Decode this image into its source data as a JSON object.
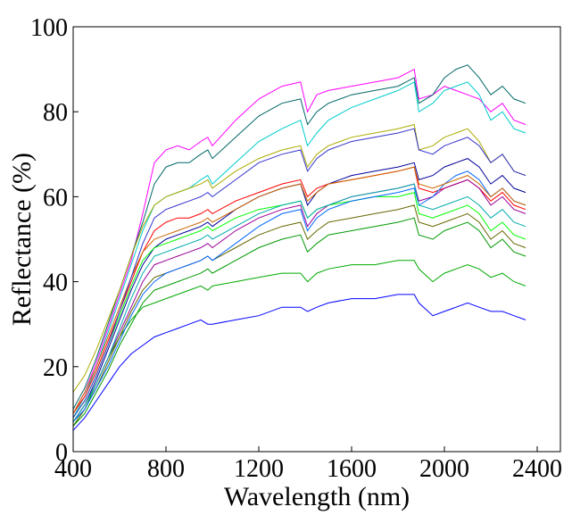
{
  "chart_data": {
    "type": "line",
    "title": "",
    "xlabel": "Wavelength (nm)",
    "ylabel": "Reflectance (%)",
    "xlim": [
      400,
      2500
    ],
    "ylim": [
      0,
      100
    ],
    "x_ticks": [
      400,
      800,
      1200,
      1600,
      2000,
      2400
    ],
    "y_ticks": [
      0,
      20,
      40,
      60,
      80,
      100
    ],
    "x_tick_labels": [
      "400",
      "800",
      "1200",
      "1600",
      "2000",
      "2400"
    ],
    "y_tick_labels": [
      "0",
      "20",
      "40",
      "60",
      "80",
      "100"
    ],
    "grid": false,
    "legend": "none",
    "x": [
      400,
      450,
      500,
      550,
      600,
      650,
      700,
      750,
      800,
      850,
      900,
      950,
      980,
      1000,
      1100,
      1200,
      1300,
      1380,
      1410,
      1450,
      1500,
      1600,
      1700,
      1800,
      1870,
      1890,
      1950,
      2000,
      2050,
      2100,
      2150,
      2200,
      2250,
      2300,
      2350
    ],
    "series": [
      {
        "color": "#0000ff",
        "values": [
          5,
          8,
          12,
          16,
          20,
          23,
          25,
          27,
          28,
          29,
          30,
          31,
          30,
          30,
          31,
          32,
          34,
          34,
          33,
          34,
          35,
          36,
          36,
          37,
          37,
          35,
          32,
          33,
          34,
          35,
          34,
          33,
          33,
          32,
          31
        ]
      },
      {
        "color": "#00aa00",
        "values": [
          6,
          10,
          16,
          22,
          27,
          31,
          34,
          35,
          36,
          37,
          38,
          39,
          38,
          39,
          40,
          41,
          42,
          42,
          40,
          42,
          43,
          44,
          44,
          45,
          45,
          43,
          40,
          42,
          43,
          44,
          43,
          41,
          42,
          40,
          39
        ]
      },
      {
        "color": "#ff00ff",
        "values": [
          9,
          14,
          21,
          29,
          37,
          45,
          56,
          68,
          71,
          72,
          71,
          73,
          74,
          72,
          78,
          83,
          86,
          87,
          80,
          84,
          85,
          86,
          87,
          88,
          90,
          83,
          84,
          86,
          85,
          84,
          83,
          80,
          82,
          78,
          77
        ]
      },
      {
        "color": "#006666",
        "values": [
          10,
          15,
          22,
          30,
          38,
          46,
          54,
          63,
          67,
          68,
          68,
          70,
          71,
          69,
          74,
          79,
          82,
          83,
          77,
          80,
          82,
          84,
          85,
          86,
          88,
          82,
          84,
          88,
          90,
          91,
          88,
          84,
          86,
          83,
          82
        ]
      },
      {
        "color": "#00cccc",
        "values": [
          8,
          13,
          20,
          28,
          36,
          44,
          52,
          58,
          60,
          61,
          62,
          64,
          65,
          63,
          68,
          73,
          76,
          78,
          72,
          75,
          78,
          81,
          83,
          85,
          87,
          80,
          82,
          85,
          86,
          87,
          84,
          78,
          80,
          76,
          75
        ]
      },
      {
        "color": "#aaaa00",
        "values": [
          14,
          18,
          24,
          31,
          38,
          46,
          53,
          58,
          60,
          61,
          62,
          63,
          64,
          62,
          66,
          69,
          71,
          72,
          67,
          70,
          72,
          74,
          75,
          76,
          77,
          71,
          72,
          74,
          75,
          76,
          73,
          68,
          70,
          66,
          65
        ]
      },
      {
        "color": "#ff0000",
        "values": [
          9,
          13,
          19,
          26,
          33,
          40,
          47,
          52,
          54,
          55,
          55,
          56,
          57,
          56,
          59,
          61,
          63,
          64,
          60,
          62,
          63,
          64,
          65,
          66,
          67,
          62,
          61,
          62,
          63,
          64,
          62,
          59,
          61,
          58,
          57
        ]
      },
      {
        "color": "#000099",
        "values": [
          7,
          11,
          17,
          24,
          31,
          38,
          44,
          48,
          50,
          51,
          52,
          53,
          54,
          53,
          57,
          60,
          62,
          63,
          58,
          61,
          63,
          65,
          66,
          67,
          68,
          64,
          65,
          67,
          68,
          69,
          67,
          63,
          65,
          62,
          61
        ]
      },
      {
        "color": "#00ff00",
        "values": [
          8,
          12,
          18,
          25,
          32,
          39,
          45,
          48,
          49,
          50,
          51,
          52,
          53,
          52,
          55,
          57,
          58,
          59,
          55,
          57,
          58,
          59,
          60,
          60,
          61,
          56,
          55,
          56,
          57,
          58,
          56,
          52,
          54,
          51,
          50
        ]
      },
      {
        "color": "#990099",
        "values": [
          7,
          11,
          16,
          22,
          28,
          34,
          40,
          44,
          45,
          46,
          47,
          48,
          49,
          48,
          52,
          55,
          57,
          58,
          53,
          56,
          58,
          60,
          61,
          62,
          63,
          59,
          60,
          62,
          63,
          64,
          62,
          58,
          60,
          57,
          56
        ]
      },
      {
        "color": "#666600",
        "values": [
          6,
          10,
          15,
          21,
          27,
          33,
          38,
          41,
          42,
          43,
          44,
          45,
          46,
          45,
          48,
          51,
          53,
          54,
          50,
          52,
          54,
          55,
          56,
          57,
          58,
          54,
          53,
          54,
          55,
          56,
          54,
          50,
          52,
          49,
          48
        ]
      },
      {
        "color": "#0066ff",
        "values": [
          7,
          10,
          15,
          20,
          26,
          32,
          37,
          40,
          42,
          43,
          44,
          45,
          46,
          45,
          49,
          53,
          56,
          57,
          52,
          55,
          57,
          59,
          60,
          61,
          62,
          58,
          60,
          63,
          65,
          66,
          64,
          60,
          62,
          59,
          58
        ]
      },
      {
        "color": "#009900",
        "values": [
          6,
          9,
          14,
          19,
          25,
          30,
          35,
          38,
          39,
          40,
          41,
          42,
          43,
          42,
          45,
          48,
          50,
          51,
          47,
          49,
          51,
          52,
          53,
          54,
          55,
          51,
          50,
          52,
          53,
          54,
          52,
          48,
          50,
          47,
          46
        ]
      },
      {
        "color": "#cc6600",
        "values": [
          9,
          14,
          20,
          27,
          34,
          41,
          47,
          50,
          51,
          52,
          53,
          54,
          55,
          54,
          57,
          60,
          62,
          63,
          59,
          61,
          63,
          64,
          65,
          66,
          67,
          63,
          62,
          63,
          64,
          65,
          63,
          60,
          62,
          59,
          58
        ]
      },
      {
        "color": "#3333cc",
        "values": [
          8,
          12,
          18,
          25,
          33,
          41,
          49,
          55,
          57,
          58,
          59,
          60,
          61,
          60,
          64,
          68,
          70,
          71,
          66,
          69,
          71,
          73,
          74,
          75,
          76,
          71,
          70,
          72,
          73,
          74,
          72,
          68,
          70,
          66,
          65
        ]
      },
      {
        "color": "#00aaaa",
        "values": [
          7,
          11,
          16,
          22,
          29,
          36,
          42,
          46,
          47,
          48,
          49,
          50,
          51,
          50,
          53,
          56,
          58,
          59,
          55,
          57,
          58,
          60,
          61,
          62,
          63,
          58,
          57,
          58,
          59,
          60,
          58,
          55,
          57,
          54,
          53
        ]
      }
    ]
  }
}
